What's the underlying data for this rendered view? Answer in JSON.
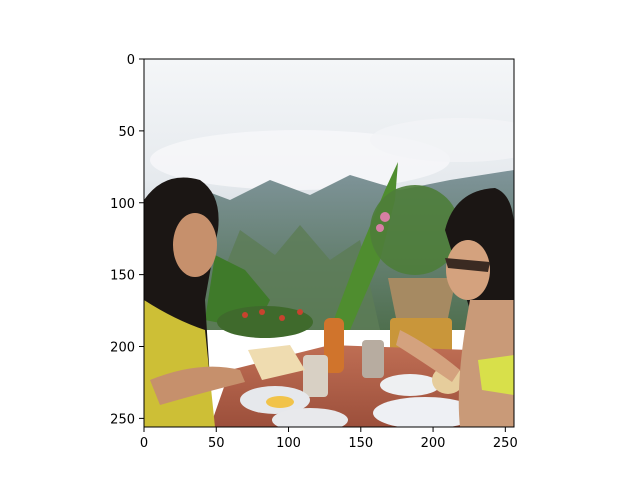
{
  "figure": {
    "image_subject": "two women eating breakfast at an outdoor table with mountain and cloud view",
    "x_range": [
      0,
      256
    ],
    "y_range": [
      0,
      256
    ],
    "x_ticks": [
      {
        "value": 0,
        "label": "0"
      },
      {
        "value": 50,
        "label": "50"
      },
      {
        "value": 100,
        "label": "100"
      },
      {
        "value": 150,
        "label": "150"
      },
      {
        "value": 200,
        "label": "200"
      },
      {
        "value": 250,
        "label": "250"
      }
    ],
    "y_ticks": [
      {
        "value": 0,
        "label": "0"
      },
      {
        "value": 50,
        "label": "50"
      },
      {
        "value": 100,
        "label": "100"
      },
      {
        "value": 150,
        "label": "150"
      },
      {
        "value": 200,
        "label": "200"
      },
      {
        "value": 250,
        "label": "250"
      }
    ]
  },
  "colors": {
    "sky": "#e9edf1",
    "mountains": "#6f8a86",
    "table": "#b4624a",
    "shirt_left": "#cdbf36",
    "hair": "#1b1614",
    "skin": "#c6906c"
  }
}
